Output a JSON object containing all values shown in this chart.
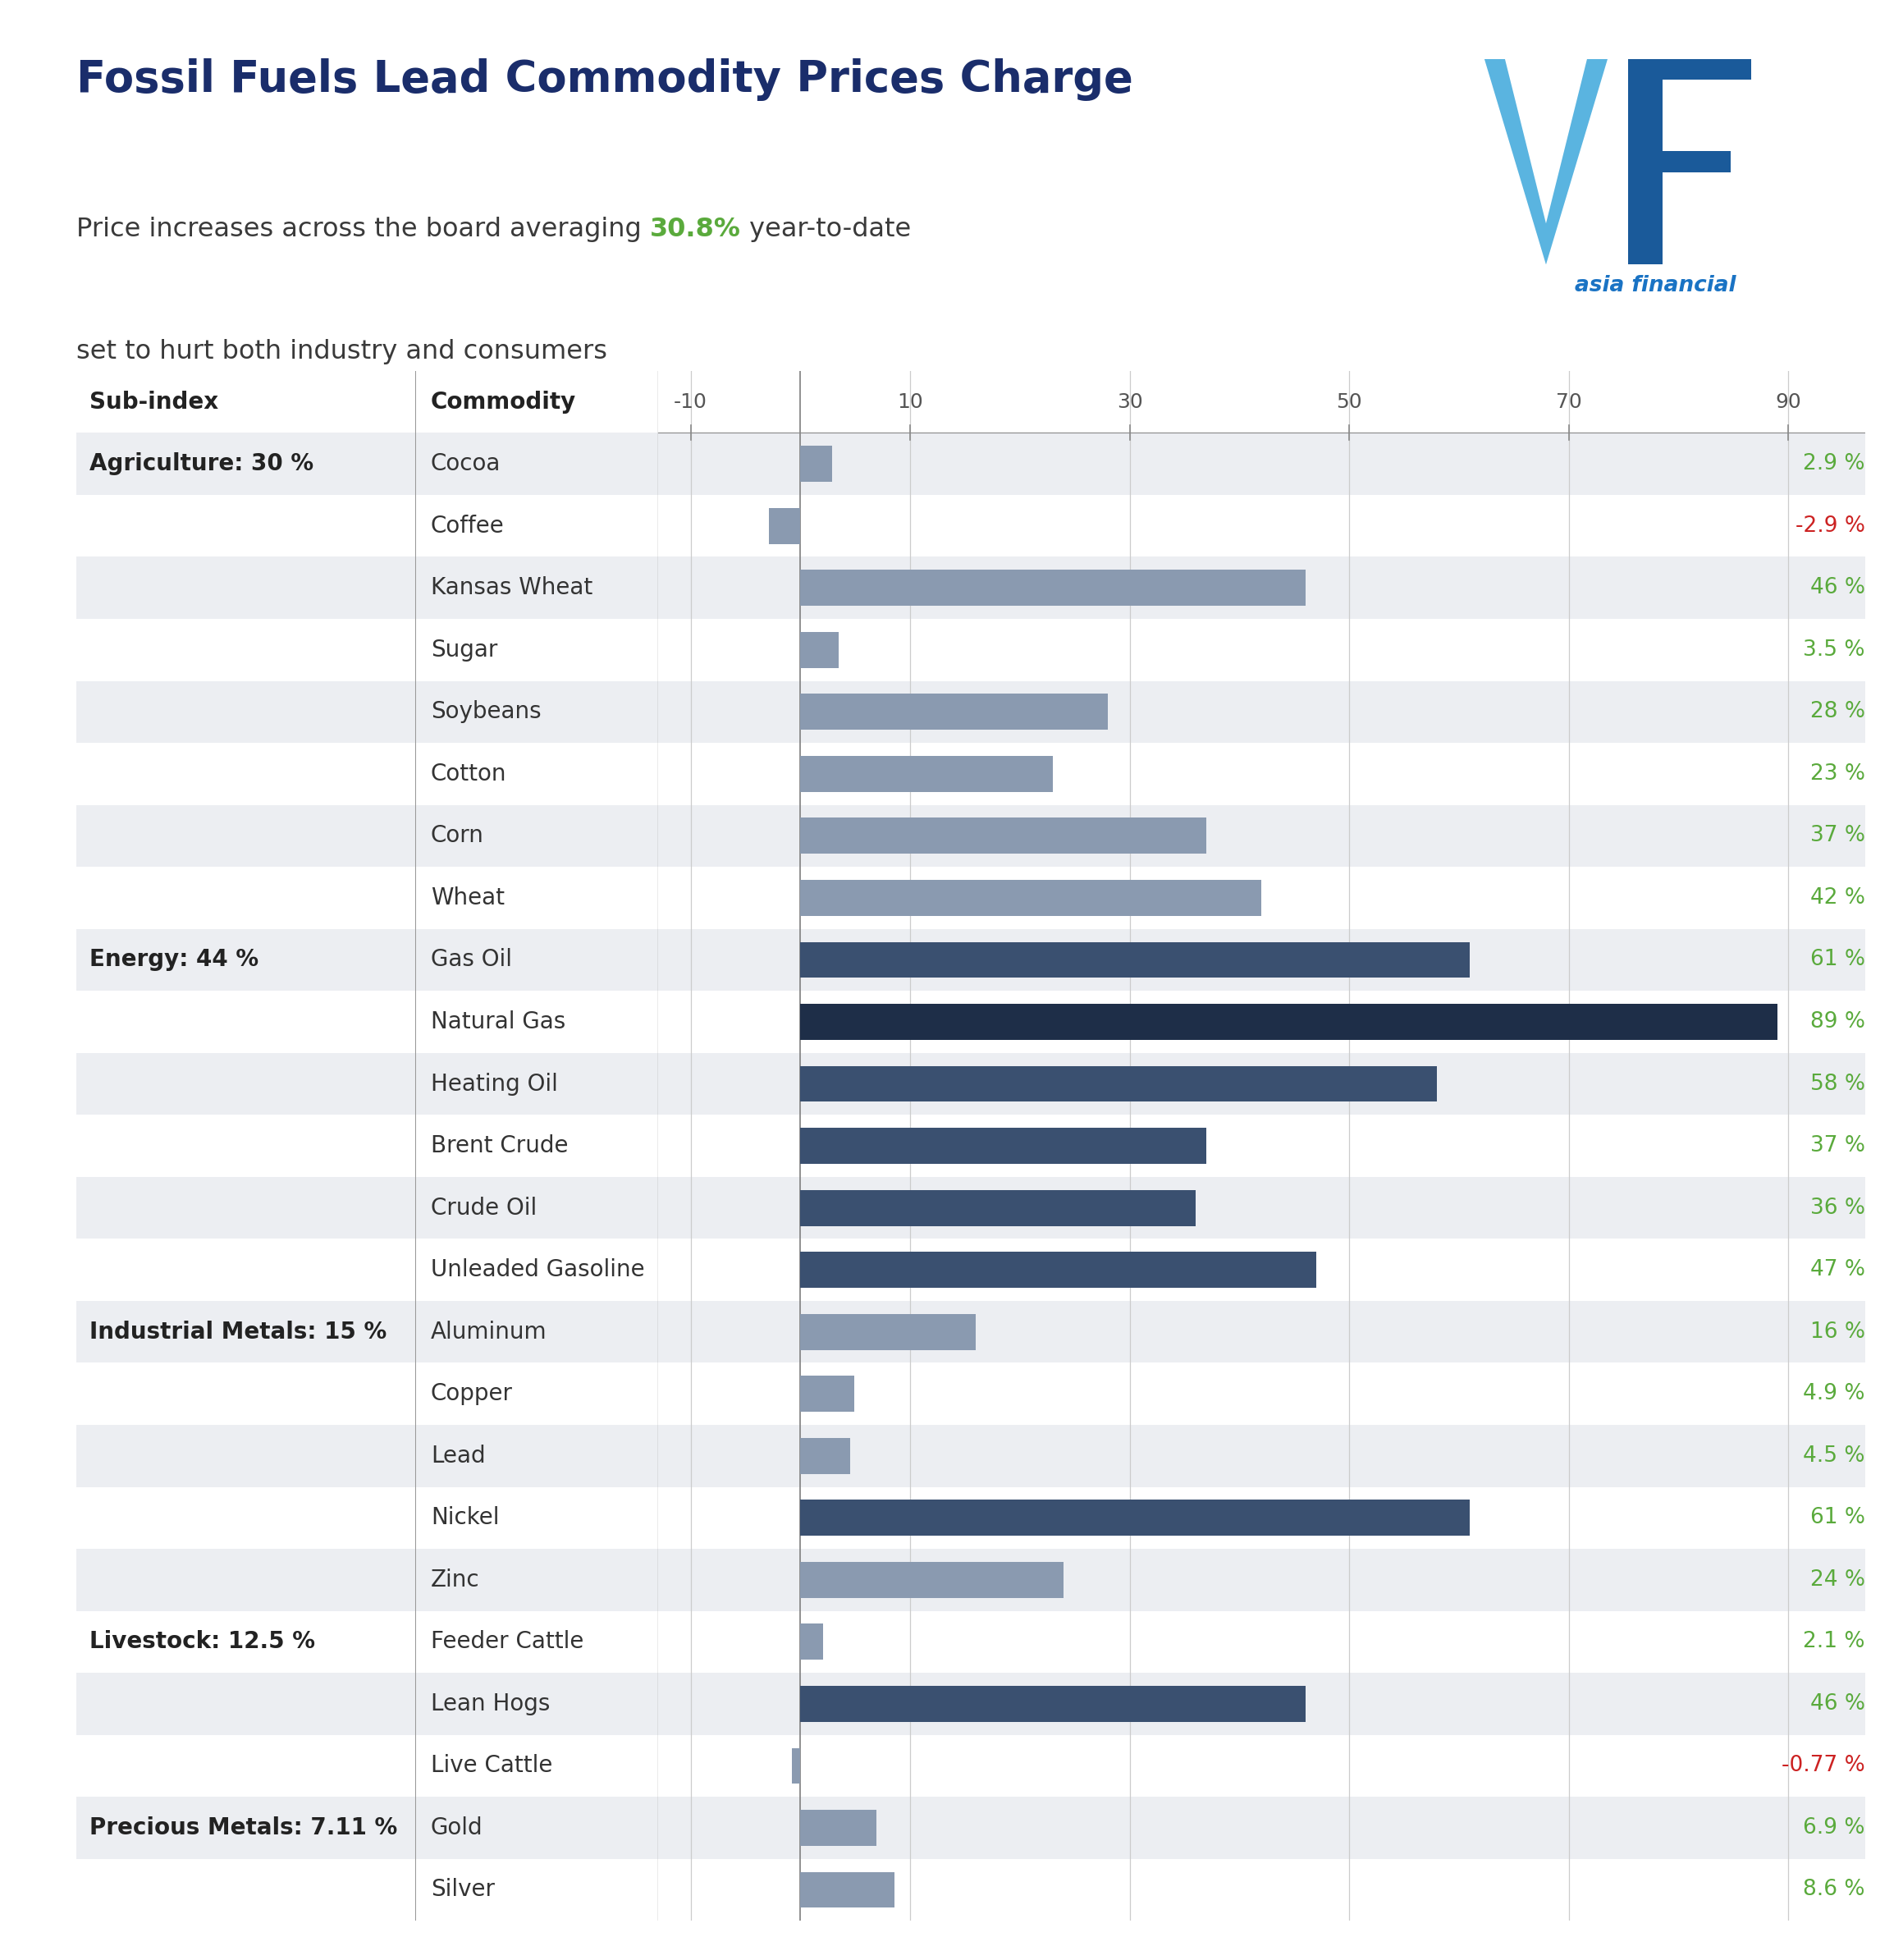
{
  "title": "Fossil Fuels Lead Commodity Prices Charge",
  "subtitle_prefix": "Price increases across the board averaging ",
  "subtitle_highlight": "30.8%",
  "subtitle_suffix": " year-to-date",
  "subtitle_line2": "set to hurt both industry and consumers",
  "highlight_color": "#5aaa3c",
  "title_color": "#1a2d6b",
  "subtitle_color": "#3a3a3a",
  "background_color": "#ffffff",
  "commodities": [
    "Cocoa",
    "Coffee",
    "Kansas Wheat",
    "Sugar",
    "Soybeans",
    "Cotton",
    "Corn",
    "Wheat",
    "Gas Oil",
    "Natural Gas",
    "Heating Oil",
    "Brent Crude",
    "Crude Oil",
    "Unleaded Gasoline",
    "Aluminum",
    "Copper",
    "Lead",
    "Nickel",
    "Zinc",
    "Feeder Cattle",
    "Lean Hogs",
    "Live Cattle",
    "Gold",
    "Silver"
  ],
  "values": [
    2.9,
    -2.9,
    46,
    3.5,
    28,
    23,
    37,
    42,
    61,
    89,
    58,
    37,
    36,
    47,
    16,
    4.9,
    4.5,
    61,
    24,
    2.1,
    46,
    -0.77,
    6.9,
    8.6
  ],
  "labels": [
    "2.9 %",
    "-2.9 %",
    "46 %",
    "3.5 %",
    "28 %",
    "23 %",
    "37 %",
    "42 %",
    "61 %",
    "89 %",
    "58 %",
    "37 %",
    "36 %",
    "47 %",
    "16 %",
    "4.9 %",
    "4.5 %",
    "61 %",
    "24 %",
    "2.1 %",
    "46 %",
    "-0.77 %",
    "6.9 %",
    "8.6 %"
  ],
  "label_colors": [
    "#5aaa3c",
    "#cc2222",
    "#5aaa3c",
    "#5aaa3c",
    "#5aaa3c",
    "#5aaa3c",
    "#5aaa3c",
    "#5aaa3c",
    "#5aaa3c",
    "#5aaa3c",
    "#5aaa3c",
    "#5aaa3c",
    "#5aaa3c",
    "#5aaa3c",
    "#5aaa3c",
    "#5aaa3c",
    "#5aaa3c",
    "#5aaa3c",
    "#5aaa3c",
    "#5aaa3c",
    "#5aaa3c",
    "#cc2222",
    "#5aaa3c",
    "#5aaa3c"
  ],
  "bar_colors": [
    "#8a9ab0",
    "#8a9ab0",
    "#8a9ab0",
    "#8a9ab0",
    "#8a9ab0",
    "#8a9ab0",
    "#8a9ab0",
    "#8a9ab0",
    "#3a5070",
    "#1e2e48",
    "#3a5070",
    "#3a5070",
    "#3a5070",
    "#3a5070",
    "#8a9ab0",
    "#8a9ab0",
    "#8a9ab0",
    "#3a5070",
    "#8a9ab0",
    "#8a9ab0",
    "#3a5070",
    "#8a9ab0",
    "#8a9ab0",
    "#8a9ab0"
  ],
  "subindex_labels": [
    "Agriculture: 30 %",
    null,
    null,
    null,
    null,
    null,
    null,
    null,
    "Energy: 44 %",
    null,
    null,
    null,
    null,
    null,
    "Industrial Metals: 15 %",
    null,
    null,
    null,
    null,
    "Livestock: 12.5 %",
    null,
    null,
    "Precious Metals: 7.11 %",
    null
  ],
  "row_shading": [
    1,
    0,
    1,
    0,
    1,
    0,
    1,
    0,
    1,
    0,
    1,
    0,
    1,
    0,
    1,
    0,
    1,
    0,
    1,
    0,
    1,
    0,
    1,
    0
  ],
  "xlim": [
    -13,
    97
  ],
  "xticks": [
    -10,
    10,
    30,
    50,
    70,
    90
  ],
  "row_bg_shaded": "#eceef2",
  "row_bg_plain": "#ffffff",
  "grid_color": "#cccccc",
  "separator_color": "#999999",
  "macrobond_color": "#555555",
  "logo_blue": "#1a73c4",
  "logo_text_color": "#1a73c4"
}
